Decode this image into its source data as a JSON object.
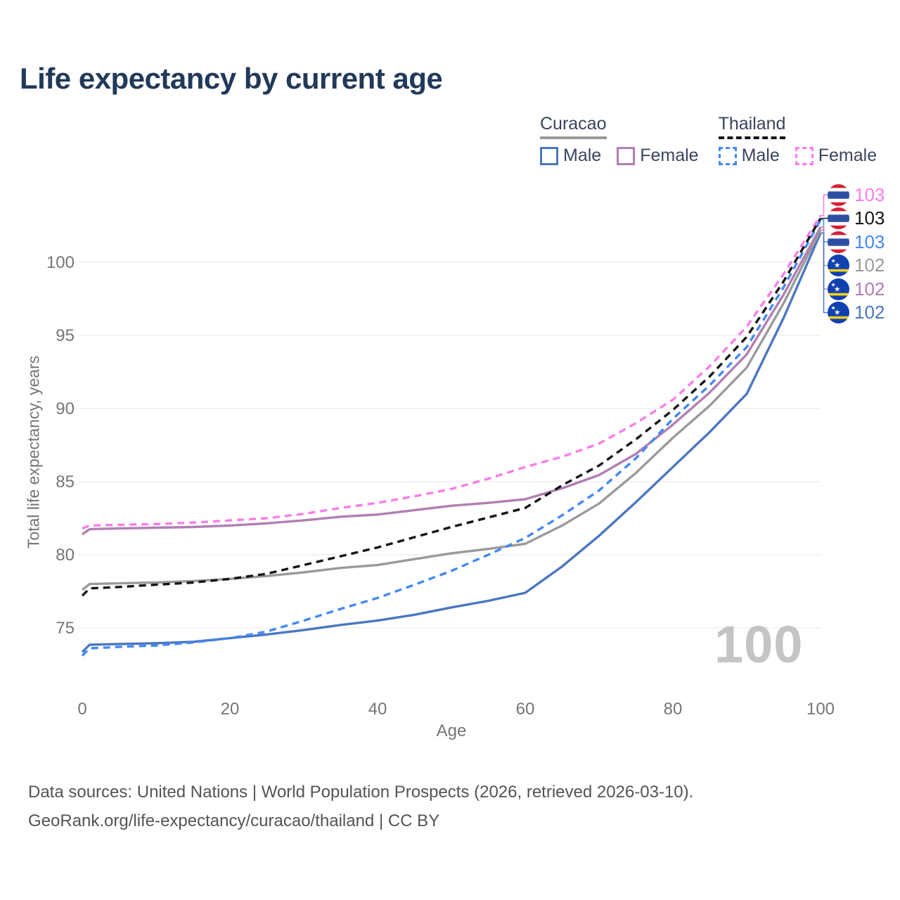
{
  "title": "Life expectancy by current age",
  "watermark": "100",
  "colors": {
    "title": "#21395a",
    "legend_text": "#39455e",
    "tick_text": "#757575",
    "grid": "#ececec",
    "footer": "#545454",
    "watermark": "#c4c4c4",
    "curacao_male": "#4b76c2",
    "curacao_female": "#b17fb3",
    "curacao_total": "#9a9a9a",
    "thailand_male": "#4289f5",
    "thailand_female": "#fb7de9",
    "thailand_total": "#141414",
    "flag_thailand_red": "#d62035",
    "flag_thailand_blue": "#2d4fa2",
    "flag_curacao_blue": "#1041b0",
    "flag_curacao_yellow": "#f7d116"
  },
  "legend": {
    "groups": [
      {
        "key": "curacao",
        "label": "Curacao",
        "underline_style": "solid",
        "underline_color": "#9a9a9a",
        "items": [
          {
            "key": "curacao_male",
            "label": "Male",
            "color": "#4b76c2",
            "dashed": false
          },
          {
            "key": "curacao_female",
            "label": "Female",
            "color": "#b17fb3",
            "dashed": false
          }
        ]
      },
      {
        "key": "thailand",
        "label": "Thailand",
        "underline_style": "dashed",
        "underline_color": "#141414",
        "items": [
          {
            "key": "thailand_male",
            "label": "Male",
            "color": "#4289f5",
            "dashed": true
          },
          {
            "key": "thailand_female",
            "label": "Female",
            "color": "#fb7de9",
            "dashed": true
          }
        ]
      }
    ]
  },
  "chart_data": {
    "type": "line",
    "title": "Life expectancy by current age",
    "xlabel": "Age",
    "ylabel": "Total life expectancy, years",
    "x_ticks": [
      0,
      20,
      40,
      60,
      80,
      100
    ],
    "y_ticks": [
      75,
      80,
      85,
      90,
      95,
      100
    ],
    "xlim": [
      0,
      100
    ],
    "ylim": [
      72.5,
      104.5
    ],
    "grid": "horizontal",
    "legend_position": "top-right",
    "x": [
      0,
      1,
      5,
      10,
      15,
      20,
      25,
      30,
      35,
      40,
      45,
      50,
      55,
      60,
      65,
      70,
      75,
      80,
      85,
      90,
      95,
      100
    ],
    "series": [
      {
        "key": "curacao_male",
        "name": "Curacao Male",
        "color": "#4b76c2",
        "dashed": false,
        "values": [
          73.35,
          73.85,
          73.9,
          73.95,
          74.05,
          74.3,
          74.55,
          74.85,
          75.2,
          75.5,
          75.9,
          76.4,
          76.85,
          77.4,
          79.2,
          81.3,
          83.6,
          86.0,
          88.4,
          91.0,
          96.2,
          102.0
        ]
      },
      {
        "key": "curacao_female",
        "name": "Curacao Female",
        "color": "#b17fb3",
        "dashed": false,
        "values": [
          81.4,
          81.75,
          81.8,
          81.85,
          81.9,
          82.0,
          82.15,
          82.35,
          82.6,
          82.75,
          83.05,
          83.35,
          83.55,
          83.8,
          84.55,
          85.45,
          86.9,
          88.9,
          91.1,
          93.7,
          97.8,
          102.4
        ]
      },
      {
        "key": "curacao_total",
        "name": "Curacao",
        "color": "#9a9a9a",
        "dashed": false,
        "values": [
          77.6,
          78.0,
          78.05,
          78.1,
          78.2,
          78.35,
          78.55,
          78.8,
          79.1,
          79.3,
          79.7,
          80.1,
          80.4,
          80.75,
          82.0,
          83.5,
          85.6,
          88.0,
          90.2,
          92.8,
          97.2,
          102.2
        ]
      },
      {
        "key": "thailand_male",
        "name": "Thailand Male",
        "color": "#4289f5",
        "dashed": true,
        "values": [
          73.1,
          73.6,
          73.7,
          73.8,
          74.0,
          74.3,
          74.75,
          75.5,
          76.3,
          77.05,
          77.95,
          78.9,
          80.0,
          81.15,
          82.7,
          84.4,
          86.6,
          89.3,
          91.6,
          94.2,
          98.3,
          102.9
        ]
      },
      {
        "key": "thailand_female",
        "name": "Thailand Female",
        "color": "#fb7de9",
        "dashed": true,
        "values": [
          81.8,
          82.0,
          82.05,
          82.1,
          82.2,
          82.35,
          82.5,
          82.8,
          83.2,
          83.55,
          84.0,
          84.5,
          85.2,
          86.0,
          86.7,
          87.6,
          89.0,
          90.6,
          92.9,
          95.6,
          99.2,
          103.2
        ]
      },
      {
        "key": "thailand_total",
        "name": "Thailand",
        "color": "#141414",
        "dashed": true,
        "values": [
          77.2,
          77.7,
          77.8,
          77.95,
          78.1,
          78.35,
          78.7,
          79.3,
          79.9,
          80.5,
          81.2,
          81.9,
          82.55,
          83.2,
          84.75,
          86.1,
          87.9,
          89.9,
          92.2,
          94.9,
          98.7,
          103.0
        ]
      }
    ]
  },
  "end_labels": [
    {
      "series": "thailand_female",
      "value": "103",
      "flag": "thailand"
    },
    {
      "series": "thailand_total",
      "value": "103",
      "flag": "thailand"
    },
    {
      "series": "thailand_male",
      "value": "103",
      "flag": "thailand"
    },
    {
      "series": "curacao_total",
      "value": "102",
      "flag": "curacao"
    },
    {
      "series": "curacao_female",
      "value": "102",
      "flag": "curacao"
    },
    {
      "series": "curacao_male",
      "value": "102",
      "flag": "curacao"
    }
  ],
  "footer": {
    "line1": "Data sources: United Nations | World Population Prospects (2026, retrieved 2026-03-10).",
    "line2": "GeoRank.org/life-expectancy/curacao/thailand | CC BY"
  }
}
